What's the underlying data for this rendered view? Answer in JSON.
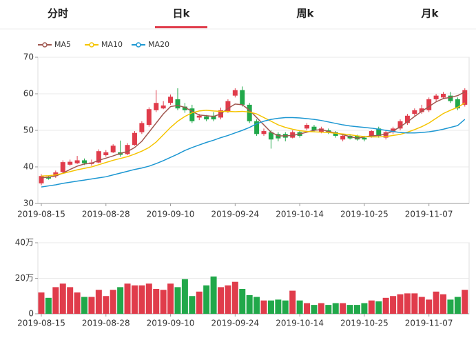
{
  "tabs": [
    "分时",
    "日k",
    "周k",
    "月k"
  ],
  "active_tab": 1,
  "chart_data": [
    {
      "type": "candlestick",
      "up_color": "#e03c4b",
      "down_color": "#21a84a",
      "grid": true,
      "categories": [
        "2019-08-15",
        null,
        null,
        null,
        null,
        null,
        null,
        null,
        null,
        "2019-08-28",
        null,
        null,
        null,
        null,
        null,
        null,
        null,
        null,
        "2019-09-10",
        null,
        null,
        null,
        null,
        null,
        null,
        null,
        null,
        "2019-09-24",
        null,
        null,
        null,
        null,
        null,
        null,
        null,
        null,
        "2019-10-14",
        null,
        null,
        null,
        null,
        null,
        null,
        null,
        null,
        "2019-10-25",
        null,
        null,
        null,
        null,
        null,
        null,
        null,
        null,
        "2019-11-07",
        null,
        null,
        null,
        null,
        null
      ],
      "open": [
        35.5,
        37.3,
        37.5,
        38.6,
        40.6,
        41,
        41.8,
        40.8,
        41.2,
        43.2,
        44,
        44,
        43.5,
        46,
        49.5,
        51.5,
        55.5,
        56,
        57.5,
        58.5,
        56.5,
        56,
        53.5,
        53.8,
        54,
        53.5,
        55,
        59.5,
        61,
        57,
        52.5,
        49,
        49.5,
        49,
        49,
        48,
        49.5,
        50.5,
        51,
        49.5,
        50,
        49.5,
        47.5,
        48.5,
        48.5,
        48,
        48.5,
        50.5,
        48,
        49.5,
        50.5,
        52,
        54.5,
        55,
        55.5,
        58.5,
        59,
        59.5,
        58.5,
        57
      ],
      "high": [
        38,
        37.6,
        39,
        41.8,
        42,
        43,
        42.3,
        42,
        44.8,
        44.6,
        46.2,
        47.2,
        46.5,
        49.8,
        52.5,
        56.3,
        61,
        58,
        59.8,
        61.5,
        57.5,
        57,
        54.5,
        54.2,
        55,
        56.2,
        58.5,
        61.5,
        62,
        57.5,
        53,
        50.5,
        50,
        49.5,
        49.5,
        50,
        50,
        52,
        51.5,
        51,
        50.5,
        49.8,
        48.8,
        49,
        48.8,
        48.5,
        50,
        51,
        50,
        51,
        53,
        54.5,
        56,
        57,
        59,
        60,
        60.5,
        60.5,
        59,
        61.5
      ],
      "low": [
        35,
        36.5,
        37,
        38.3,
        40.3,
        40.8,
        40.5,
        40.3,
        41,
        42.8,
        43.8,
        42.8,
        43.2,
        45.8,
        49,
        51,
        55,
        55.8,
        57,
        55.5,
        54.8,
        52,
        52.8,
        52.5,
        52.5,
        53,
        54.8,
        59,
        56.5,
        52,
        48.5,
        48.5,
        45,
        47,
        47,
        47.8,
        48,
        50,
        49.5,
        49.2,
        49,
        48,
        47,
        47.5,
        47.2,
        47,
        48,
        48,
        47.5,
        49,
        50,
        51.5,
        54,
        54.5,
        55,
        58,
        58.5,
        57.5,
        55.5,
        56.5
      ],
      "close": [
        37.5,
        36.8,
        38.5,
        41.3,
        41.4,
        41.8,
        41,
        41.2,
        44.3,
        44,
        45.8,
        43.3,
        46,
        49.3,
        52,
        55.8,
        57.5,
        56.8,
        59.2,
        56,
        55.5,
        52.5,
        54,
        53,
        53,
        55.5,
        58,
        61,
        57,
        52.5,
        49,
        49.8,
        47.5,
        47.8,
        48,
        49.5,
        48.5,
        51.5,
        50,
        50.5,
        49.5,
        48.5,
        48.5,
        47.8,
        47.5,
        47.5,
        49.8,
        48.5,
        49.5,
        50.5,
        52.5,
        54,
        55.5,
        56,
        58.5,
        59.5,
        60,
        58,
        56,
        61
      ],
      "series": [
        {
          "name": "MA5",
          "color": "#a0574f",
          "values": [
            37,
            37.2,
            37.5,
            38.3,
            39.3,
            40.2,
            40.8,
            41,
            41.8,
            42.4,
            43,
            43.7,
            44.2,
            45.3,
            47,
            49.5,
            52,
            54.5,
            56.5,
            56.8,
            56.3,
            55.2,
            54.2,
            54,
            53.8,
            54.5,
            56,
            57.2,
            57,
            55.5,
            53.5,
            51.5,
            49.5,
            48.5,
            48.5,
            48.6,
            49,
            49.5,
            50,
            50.2,
            49.7,
            49.3,
            48.8,
            48.3,
            47.8,
            48.2,
            48.5,
            48.6,
            49,
            49.8,
            51,
            52.3,
            53.8,
            55.2,
            56.5,
            57.8,
            58.7,
            59,
            59.5,
            60.5
          ]
        },
        {
          "name": "MA10",
          "color": "#f5c400",
          "values": [
            37.5,
            37.6,
            37.8,
            38.2,
            38.7,
            39.2,
            39.6,
            40,
            40.6,
            41.2,
            41.8,
            42.3,
            42.8,
            43.5,
            44.3,
            45.3,
            46.8,
            48.8,
            50.8,
            52.5,
            53.8,
            54.8,
            55.3,
            55.5,
            55.3,
            55.2,
            55.2,
            55.1,
            55.2,
            55,
            54.5,
            53.5,
            52.5,
            51.5,
            50.8,
            50.3,
            49.9,
            49.7,
            49.6,
            49.5,
            49.4,
            49.2,
            49,
            48.8,
            48.5,
            48.3,
            48.2,
            48.2,
            48.3,
            48.6,
            48.9,
            49.5,
            50.2,
            51,
            52,
            53.3,
            54.6,
            55.5,
            56.3,
            57.5
          ]
        },
        {
          "name": "MA20",
          "color": "#1c97d2",
          "values": [
            34.5,
            34.8,
            35.1,
            35.5,
            35.8,
            36.1,
            36.4,
            36.7,
            37,
            37.3,
            37.8,
            38.3,
            38.8,
            39.3,
            39.7,
            40.2,
            40.9,
            41.7,
            42.6,
            43.5,
            44.5,
            45.3,
            46,
            46.7,
            47.3,
            48,
            48.6,
            49.3,
            50,
            50.8,
            51.8,
            52.5,
            53,
            53.3,
            53.5,
            53.5,
            53.4,
            53.2,
            53,
            52.7,
            52.3,
            51.9,
            51.5,
            51.2,
            51,
            50.8,
            50.6,
            50.3,
            50,
            49.7,
            49.4,
            49.3,
            49.3,
            49.4,
            49.6,
            49.9,
            50.3,
            50.8,
            51.3,
            53
          ]
        }
      ],
      "ylim": [
        30,
        70
      ],
      "yticks": [
        30,
        40,
        50,
        60,
        70
      ]
    },
    {
      "type": "bar",
      "grid": true,
      "categories": [
        "2019-08-15",
        null,
        null,
        null,
        null,
        null,
        null,
        null,
        null,
        "2019-08-28",
        null,
        null,
        null,
        null,
        null,
        null,
        null,
        null,
        "2019-09-10",
        null,
        null,
        null,
        null,
        null,
        null,
        null,
        null,
        "2019-09-24",
        null,
        null,
        null,
        null,
        null,
        null,
        null,
        null,
        "2019-10-14",
        null,
        null,
        null,
        null,
        null,
        null,
        null,
        null,
        "2019-10-25",
        null,
        null,
        null,
        null,
        null,
        null,
        null,
        null,
        "2019-11-07",
        null,
        null,
        null,
        null,
        null
      ],
      "values": [
        12,
        9,
        15,
        17,
        15,
        12,
        9.5,
        9.5,
        13.5,
        10,
        13.5,
        15,
        17,
        16,
        16,
        17,
        14,
        13.5,
        17,
        15,
        19.5,
        10,
        12.5,
        16,
        21,
        15,
        16,
        18,
        14,
        10.5,
        9.5,
        7.5,
        7.5,
        8,
        7.5,
        13,
        7.5,
        6,
        5,
        6,
        5,
        6,
        6,
        5,
        5,
        6,
        7.5,
        7,
        9,
        10,
        11,
        11.5,
        11.5,
        9.5,
        8,
        12.5,
        11,
        8,
        9.5,
        13.5
      ],
      "ylim": [
        0,
        40
      ],
      "yticks": [
        0,
        {
          "value": 20,
          "label": "20万"
        },
        {
          "value": 40,
          "label": "40万"
        }
      ]
    }
  ]
}
